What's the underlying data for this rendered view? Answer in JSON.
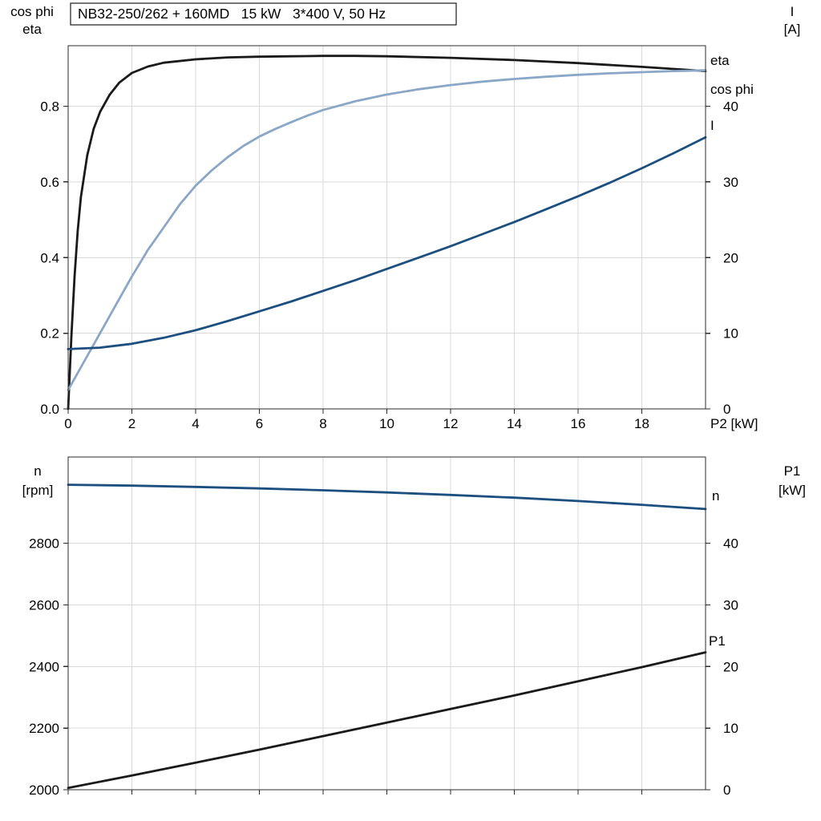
{
  "colors": {
    "grid": "#d9d9d9",
    "frame": "#2b2b2b",
    "text": "#000000"
  },
  "chart_data": [
    {
      "type": "line",
      "title": "NB32-250/262 + 160MD   15 kW   3*400 V, 50 Hz",
      "xlabel": "P2 [kW]",
      "axis_title_left": [
        "cos phi",
        "eta"
      ],
      "axis_title_right": [
        "I",
        "[A]"
      ],
      "xlim": [
        0,
        20
      ],
      "xticks": {
        "values": [
          0,
          2,
          4,
          6,
          8,
          10,
          12,
          14,
          16,
          18
        ],
        "labels": [
          "0",
          "2",
          "4",
          "6",
          "8",
          "10",
          "12",
          "14",
          "16",
          "18"
        ]
      },
      "ylim_left": [
        0,
        0.96
      ],
      "yticks_left": {
        "values": [
          0,
          0.2,
          0.4,
          0.6,
          0.8
        ],
        "labels": [
          "0.0",
          "0.2",
          "0.4",
          "0.6",
          "0.8"
        ]
      },
      "ylim_right": [
        0,
        48
      ],
      "yticks_right": {
        "values": [
          0,
          10,
          20,
          30,
          40
        ],
        "labels": [
          "0",
          "10",
          "20",
          "30",
          "40"
        ]
      },
      "grid": true,
      "label_position": "end-right",
      "series": [
        {
          "name": "eta",
          "label": "eta",
          "axis": "left",
          "color": "#1a1a1a",
          "x": [
            0,
            0.1,
            0.2,
            0.3,
            0.4,
            0.6,
            0.8,
            1.0,
            1.3,
            1.6,
            2.0,
            2.5,
            3.0,
            4.0,
            5.0,
            6.0,
            7.0,
            8.0,
            9.0,
            10.0,
            12.0,
            14.0,
            16.0,
            18.0,
            20.0
          ],
          "y": [
            0,
            0.19,
            0.35,
            0.47,
            0.56,
            0.67,
            0.74,
            0.785,
            0.83,
            0.862,
            0.888,
            0.905,
            0.915,
            0.924,
            0.929,
            0.931,
            0.932,
            0.933,
            0.933,
            0.932,
            0.928,
            0.922,
            0.914,
            0.904,
            0.893
          ]
        },
        {
          "name": "cos phi",
          "label": "cos phi",
          "axis": "left",
          "color": "#8ba7c7",
          "x": [
            0,
            0.5,
            1,
            1.5,
            2,
            2.5,
            3,
            3.5,
            4,
            4.5,
            5,
            5.5,
            6,
            6.5,
            7,
            7.5,
            8,
            9,
            10,
            11,
            12,
            13,
            14,
            15,
            16,
            17,
            18,
            19,
            20
          ],
          "y": [
            0.05,
            0.125,
            0.2,
            0.275,
            0.35,
            0.42,
            0.48,
            0.54,
            0.59,
            0.63,
            0.665,
            0.695,
            0.72,
            0.74,
            0.758,
            0.775,
            0.79,
            0.813,
            0.831,
            0.845,
            0.856,
            0.865,
            0.872,
            0.878,
            0.883,
            0.887,
            0.89,
            0.893,
            0.895
          ]
        },
        {
          "name": "I",
          "label": "I",
          "axis": "right",
          "color": "#1c4f7f",
          "x": [
            0,
            1,
            2,
            3,
            4,
            5,
            6,
            7,
            8,
            9,
            10,
            11,
            12,
            13,
            14,
            15,
            16,
            17,
            18,
            19,
            20
          ],
          "y": [
            7.9,
            8.1,
            8.6,
            9.4,
            10.4,
            11.6,
            12.9,
            14.2,
            15.6,
            17.0,
            18.5,
            20.0,
            21.5,
            23.1,
            24.7,
            26.4,
            28.1,
            29.9,
            31.8,
            33.8,
            35.9
          ]
        }
      ]
    },
    {
      "type": "line",
      "title": "",
      "xlabel": "",
      "axis_title_left": [
        "n",
        "[rpm]"
      ],
      "axis_title_right": [
        "P1",
        "[kW]"
      ],
      "xlim": [
        0,
        20
      ],
      "xticks": {
        "values": [
          0,
          2,
          4,
          6,
          8,
          10,
          12,
          14,
          16,
          18
        ],
        "labels": [
          "",
          "",
          "",
          "",
          "",
          "",
          "",
          "",
          "",
          ""
        ]
      },
      "ylim_left": [
        2000,
        3080
      ],
      "yticks_left": {
        "values": [
          2000,
          2200,
          2400,
          2600,
          2800
        ],
        "labels": [
          "2000",
          "2200",
          "2400",
          "2600",
          "2800"
        ]
      },
      "ylim_right": [
        0,
        54
      ],
      "yticks_right": {
        "values": [
          0,
          10,
          20,
          30,
          40
        ],
        "labels": [
          "0",
          "10",
          "20",
          "30",
          "40"
        ]
      },
      "grid": true,
      "label_position": "end-right",
      "series": [
        {
          "name": "n",
          "label": "n",
          "axis": "left",
          "color": "#1c4f7f",
          "x": [
            0,
            2,
            4,
            6,
            8,
            10,
            12,
            14,
            16,
            18,
            20
          ],
          "y": [
            2990,
            2987,
            2983,
            2978,
            2972,
            2965,
            2957,
            2948,
            2937,
            2925,
            2911
          ]
        },
        {
          "name": "P1",
          "label": "P1",
          "axis": "right",
          "color": "#1a1a1a",
          "x": [
            0,
            2,
            4,
            6,
            8,
            10,
            12,
            14,
            16,
            18,
            20
          ],
          "y": [
            0.3,
            2.3,
            4.4,
            6.5,
            8.7,
            10.9,
            13.1,
            15.3,
            17.6,
            19.9,
            22.3
          ]
        }
      ]
    }
  ]
}
